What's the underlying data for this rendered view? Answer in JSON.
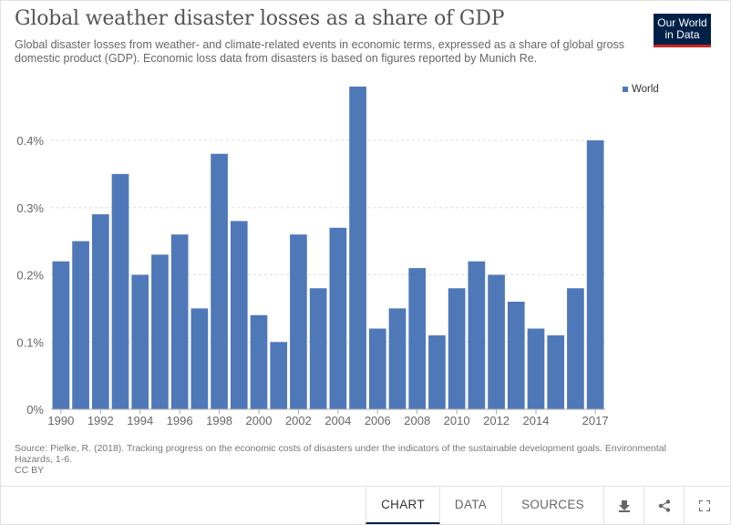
{
  "header": {
    "title": "Global weather disaster losses as a share of GDP",
    "subtitle": "Global disaster losses from weather- and climate-related events in economic terms, expressed as a share of global gross domestic product (GDP). Economic loss data from disasters is based on figures reported by Munich Re.",
    "logo_line1": "Our World",
    "logo_line2": "in Data"
  },
  "colors": {
    "bar": "#4f78b8",
    "logo_bg": "#002147",
    "logo_accent": "#ce261e"
  },
  "chart_data": {
    "type": "bar",
    "title": "Global weather disaster losses as a share of GDP",
    "categories": [
      "1990",
      "1991",
      "1992",
      "1993",
      "1994",
      "1995",
      "1996",
      "1997",
      "1998",
      "1999",
      "2000",
      "2001",
      "2002",
      "2003",
      "2004",
      "2005",
      "2006",
      "2007",
      "2008",
      "2009",
      "2010",
      "2011",
      "2012",
      "2013",
      "2014",
      "2015",
      "2016",
      "2017"
    ],
    "series": [
      {
        "name": "World",
        "values": [
          0.22,
          0.25,
          0.29,
          0.35,
          0.2,
          0.23,
          0.26,
          0.15,
          0.38,
          0.28,
          0.14,
          0.1,
          0.26,
          0.18,
          0.27,
          0.48,
          0.12,
          0.15,
          0.21,
          0.11,
          0.18,
          0.22,
          0.2,
          0.16,
          0.12,
          0.11,
          0.18,
          0.4
        ]
      }
    ],
    "x_tick_labels": [
      "1990",
      "1992",
      "1994",
      "1996",
      "1998",
      "2000",
      "2002",
      "2004",
      "2006",
      "2008",
      "2010",
      "2012",
      "2014",
      "2017"
    ],
    "y_ticks": [
      0,
      0.1,
      0.2,
      0.3,
      0.4
    ],
    "y_tick_labels": [
      "0%",
      "0.1%",
      "0.2%",
      "0.3%",
      "0.4%"
    ],
    "ylim": [
      0,
      0.48
    ],
    "xlabel": "",
    "ylabel": "",
    "grid": true,
    "legend_position": "top-right"
  },
  "source_text": "Source: Pielke, R. (2018). Tracking progress on the economic costs of disasters under the indicators of the sustainable development goals. Environmental Hazards, 1-6.",
  "license": "CC BY",
  "tabs": {
    "chart": "CHART",
    "data": "DATA",
    "sources": "SOURCES"
  }
}
